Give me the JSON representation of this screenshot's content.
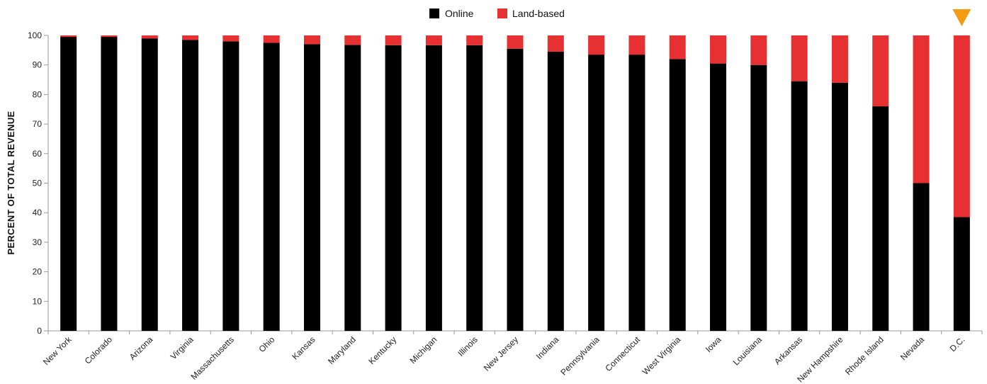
{
  "chart_data": {
    "type": "bar",
    "stacked": true,
    "title": "",
    "xlabel": "",
    "ylabel": "PERCENT OF TOTAL REVENUE",
    "ylim": [
      0,
      100
    ],
    "yticks": [
      0,
      10,
      20,
      30,
      40,
      50,
      60,
      70,
      80,
      90,
      100
    ],
    "grid": false,
    "legend_position": "top-center",
    "categories": [
      "New York",
      "Colorado",
      "Arizona",
      "Virginia",
      "Massachusetts",
      "Ohio",
      "Kansas",
      "Maryland",
      "Kentucky",
      "Michigan",
      "Illinois",
      "New Jersey",
      "Indiana",
      "Pennsylvania",
      "Connecticut",
      "West Virginia",
      "Iowa",
      "Louisiana",
      "Arkansas",
      "New Hampshire",
      "Rhode Island",
      "Nevada",
      "D.C."
    ],
    "series": [
      {
        "name": "Online",
        "color": "#000000",
        "values": [
          99.5,
          99.5,
          99,
          98.5,
          98,
          97.5,
          97,
          96.8,
          96.7,
          96.7,
          96.7,
          95.5,
          94.5,
          93.5,
          93.5,
          92,
          90.5,
          90,
          84.5,
          84,
          76,
          50,
          38.5
        ]
      },
      {
        "name": "Land-based",
        "color": "#e63032",
        "values": [
          0.5,
          0.5,
          1,
          1.5,
          2,
          2.5,
          3,
          3.2,
          3.3,
          3.3,
          3.3,
          4.5,
          5.5,
          6.5,
          6.5,
          8,
          9.5,
          10,
          15.5,
          16,
          24,
          50,
          61.5
        ]
      }
    ],
    "annotations": [
      {
        "type": "marker",
        "shape": "down-triangle",
        "color": "#f39c12",
        "category": "D.C."
      }
    ]
  }
}
